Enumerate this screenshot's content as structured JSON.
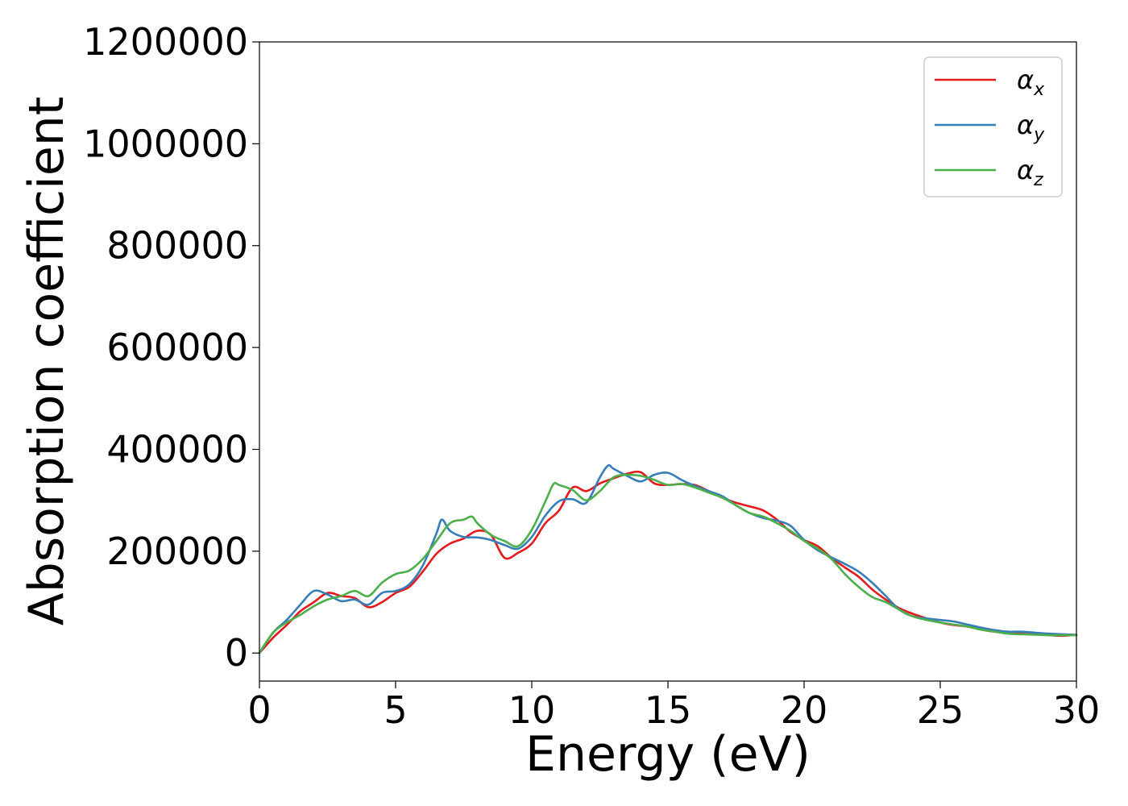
{
  "chart_data": {
    "type": "line",
    "title": "",
    "xlabel": "Energy (eV)",
    "ylabel": "Absorption coefficient",
    "xlim": [
      0,
      30
    ],
    "ylim": [
      -55000,
      1200000
    ],
    "xticks": [
      "0",
      "5",
      "10",
      "15",
      "20",
      "25",
      "30"
    ],
    "yticks": [
      "0",
      "200000",
      "400000",
      "600000",
      "800000",
      "1000000",
      "1200000"
    ],
    "grid": false,
    "legend_position": "top-right",
    "series": [
      {
        "name": "α",
        "subscript": "x",
        "color": "#e41a1c",
        "x": [
          0,
          0.5,
          1.0,
          1.5,
          2.0,
          2.5,
          3.0,
          3.5,
          4.0,
          4.5,
          5.0,
          5.5,
          6.0,
          6.5,
          7.0,
          7.5,
          8.0,
          8.5,
          9.0,
          9.5,
          10.0,
          10.5,
          11.0,
          11.5,
          12.0,
          12.5,
          13.0,
          13.5,
          14.0,
          14.5,
          15.0,
          15.5,
          16.0,
          16.5,
          17.0,
          17.5,
          18.0,
          18.5,
          19.0,
          19.5,
          20.0,
          20.5,
          21.0,
          21.5,
          22.0,
          22.5,
          23.0,
          23.5,
          24.0,
          24.5,
          25.0,
          25.5,
          26.0,
          26.5,
          27.0,
          27.5,
          28.0,
          28.5,
          29.0,
          29.5,
          30.0
        ],
        "values": [
          0,
          30000,
          55000,
          82000,
          100000,
          118000,
          112000,
          108000,
          90000,
          100000,
          118000,
          130000,
          160000,
          195000,
          215000,
          225000,
          240000,
          232000,
          187000,
          197000,
          215000,
          255000,
          280000,
          325000,
          318000,
          333000,
          343000,
          352000,
          355000,
          333000,
          330000,
          332000,
          330000,
          318000,
          305000,
          295000,
          288000,
          280000,
          262000,
          238000,
          222000,
          210000,
          187000,
          168000,
          150000,
          125000,
          105000,
          88000,
          77000,
          68000,
          60000,
          55000,
          52000,
          46000,
          42000,
          40000,
          38000,
          37000,
          35000,
          34000,
          36000
        ]
      },
      {
        "name": "α",
        "subscript": "y",
        "color": "#377eb8",
        "x": [
          0,
          0.5,
          1.0,
          1.5,
          2.0,
          2.5,
          3.0,
          3.5,
          4.0,
          4.5,
          5.0,
          5.5,
          6.0,
          6.5,
          6.7,
          7.0,
          7.5,
          8.0,
          8.5,
          9.0,
          9.5,
          10.0,
          10.5,
          11.0,
          11.5,
          12.0,
          12.5,
          12.8,
          13.0,
          13.5,
          14.0,
          14.5,
          15.0,
          15.5,
          16.0,
          16.5,
          17.0,
          17.5,
          18.0,
          18.5,
          19.0,
          19.5,
          20.0,
          20.5,
          21.0,
          21.5,
          22.0,
          22.5,
          23.0,
          23.5,
          24.0,
          24.5,
          25.0,
          25.5,
          26.0,
          26.5,
          27.0,
          27.5,
          28.0,
          28.5,
          29.0,
          29.5,
          30.0
        ],
        "values": [
          0,
          40000,
          65000,
          95000,
          122000,
          115000,
          102000,
          105000,
          95000,
          118000,
          122000,
          135000,
          172000,
          235000,
          262000,
          240000,
          228000,
          227000,
          222000,
          212000,
          205000,
          228000,
          270000,
          298000,
          302000,
          295000,
          345000,
          368000,
          362000,
          348000,
          337000,
          350000,
          354000,
          340000,
          328000,
          318000,
          308000,
          290000,
          275000,
          265000,
          260000,
          250000,
          222000,
          202000,
          188000,
          175000,
          160000,
          138000,
          112000,
          85000,
          72000,
          68000,
          65000,
          62000,
          56000,
          50000,
          45000,
          42000,
          42000,
          40000,
          38000,
          37000,
          36000
        ]
      },
      {
        "name": "α",
        "subscript": "z",
        "color": "#4daf4a",
        "x": [
          0,
          0.5,
          1.0,
          1.5,
          2.0,
          2.5,
          3.0,
          3.5,
          4.0,
          4.5,
          5.0,
          5.5,
          6.0,
          6.5,
          7.0,
          7.5,
          7.8,
          8.0,
          8.5,
          9.0,
          9.5,
          10.0,
          10.5,
          10.8,
          11.0,
          11.5,
          12.0,
          12.5,
          13.0,
          13.5,
          14.0,
          14.5,
          15.0,
          15.5,
          16.0,
          16.5,
          17.0,
          17.5,
          18.0,
          18.5,
          19.0,
          19.5,
          20.0,
          20.5,
          21.0,
          21.5,
          22.0,
          22.5,
          23.0,
          23.5,
          24.0,
          24.5,
          25.0,
          25.5,
          26.0,
          26.5,
          27.0,
          27.5,
          28.0,
          28.5,
          29.0,
          29.5,
          30.0
        ],
        "values": [
          0,
          40000,
          60000,
          75000,
          92000,
          105000,
          112000,
          122000,
          112000,
          138000,
          155000,
          162000,
          185000,
          220000,
          255000,
          262000,
          268000,
          255000,
          232000,
          220000,
          210000,
          242000,
          298000,
          332000,
          330000,
          320000,
          300000,
          318000,
          345000,
          350000,
          348000,
          340000,
          330000,
          332000,
          325000,
          315000,
          305000,
          290000,
          275000,
          268000,
          255000,
          240000,
          220000,
          205000,
          185000,
          155000,
          130000,
          110000,
          100000,
          85000,
          72000,
          65000,
          60000,
          56000,
          52000,
          46000,
          42000,
          38000,
          37000,
          36000,
          35000,
          35000,
          35000
        ]
      }
    ]
  }
}
